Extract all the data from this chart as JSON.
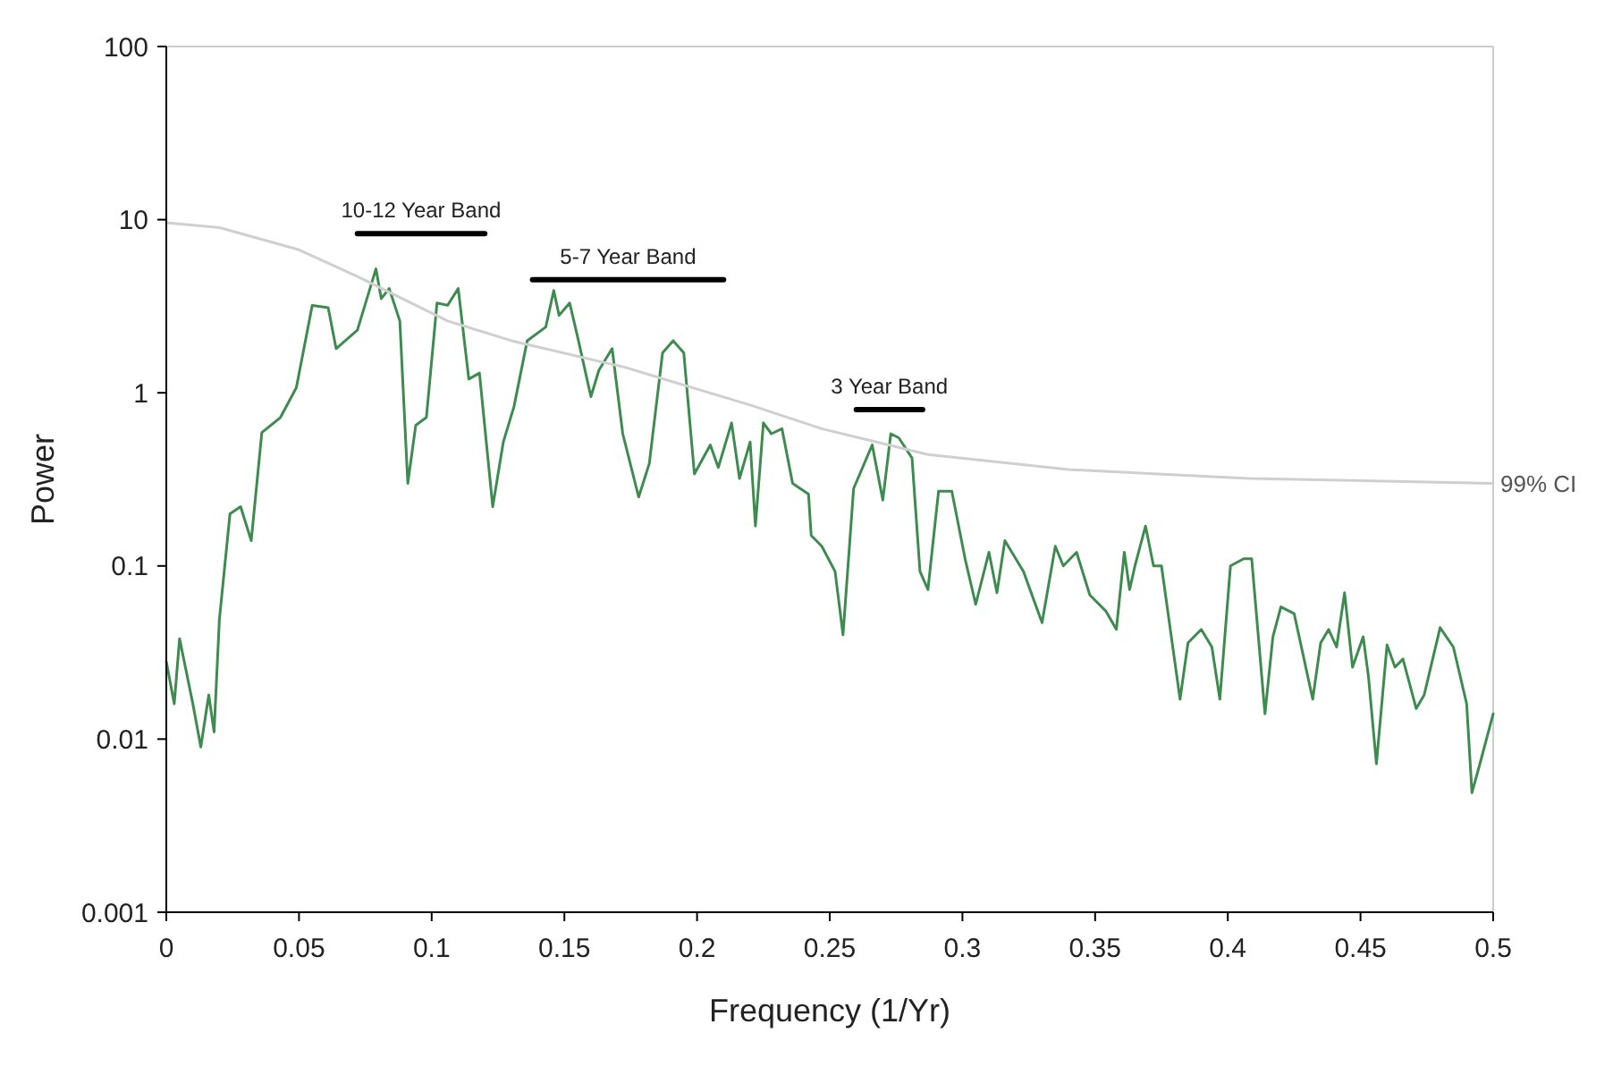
{
  "chart_data": {
    "type": "line",
    "xlabel": "Frequency (1/Yr)",
    "ylabel": "Power",
    "log": "y",
    "grid": false,
    "legend": false,
    "marker": "none",
    "line_style": "solid",
    "xlim": [
      0,
      0.5
    ],
    "ylim": [
      0.001,
      100
    ],
    "xticks": [
      0,
      0.05,
      0.1,
      0.15,
      0.2,
      0.25,
      0.3,
      0.35,
      0.4,
      0.45,
      0.5
    ],
    "yticks": [
      0.001,
      0.01,
      0.1,
      1,
      10,
      100
    ],
    "series": [
      {
        "color": "#3e8b50",
        "x": [
          0,
          0.003,
          0.005,
          0.01,
          0.013,
          0.016,
          0.018,
          0.02,
          0.024,
          0.028,
          0.032,
          0.036,
          0.043,
          0.049,
          0.055,
          0.061,
          0.064,
          0.072,
          0.079,
          0.081,
          0.084,
          0.088,
          0.091,
          0.094,
          0.098,
          0.102,
          0.106,
          0.11,
          0.114,
          0.118,
          0.123,
          0.127,
          0.131,
          0.136,
          0.143,
          0.146,
          0.148,
          0.152,
          0.155,
          0.16,
          0.163,
          0.168,
          0.172,
          0.178,
          0.182,
          0.187,
          0.191,
          0.195,
          0.199,
          0.205,
          0.208,
          0.213,
          0.216,
          0.22,
          0.222,
          0.225,
          0.228,
          0.232,
          0.236,
          0.242,
          0.243,
          0.247,
          0.252,
          0.255,
          0.259,
          0.266,
          0.27,
          0.273,
          0.276,
          0.281,
          0.284,
          0.287,
          0.291,
          0.296,
          0.301,
          0.305,
          0.31,
          0.313,
          0.316,
          0.323,
          0.33,
          0.335,
          0.338,
          0.343,
          0.348,
          0.354,
          0.358,
          0.361,
          0.363,
          0.365,
          0.369,
          0.372,
          0.375,
          0.382,
          0.385,
          0.39,
          0.394,
          0.397,
          0.401,
          0.406,
          0.409,
          0.414,
          0.417,
          0.42,
          0.425,
          0.432,
          0.435,
          0.438,
          0.441,
          0.444,
          0.447,
          0.451,
          0.453,
          0.456,
          0.46,
          0.463,
          0.466,
          0.471,
          0.474,
          0.48,
          0.485,
          0.49,
          0.492,
          0.495,
          0.5
        ],
        "values": [
          0.028,
          0.016,
          0.038,
          0.016,
          0.009,
          0.018,
          0.011,
          0.049,
          0.2,
          0.22,
          0.14,
          0.59,
          0.72,
          1.07,
          3.2,
          3.1,
          1.8,
          2.3,
          5.2,
          3.5,
          4,
          2.6,
          0.3,
          0.65,
          0.72,
          3.3,
          3.2,
          4,
          1.2,
          1.3,
          0.22,
          0.52,
          0.83,
          2,
          2.4,
          3.9,
          2.8,
          3.3,
          2.1,
          0.95,
          1.35,
          1.8,
          0.58,
          0.25,
          0.39,
          1.7,
          2,
          1.7,
          0.34,
          0.5,
          0.37,
          0.67,
          0.32,
          0.52,
          0.17,
          0.67,
          0.58,
          0.62,
          0.3,
          0.26,
          0.15,
          0.13,
          0.093,
          0.04,
          0.28,
          0.5,
          0.24,
          0.58,
          0.55,
          0.42,
          0.093,
          0.073,
          0.27,
          0.27,
          0.11,
          0.06,
          0.12,
          0.07,
          0.14,
          0.093,
          0.047,
          0.13,
          0.1,
          0.12,
          0.068,
          0.055,
          0.043,
          0.12,
          0.073,
          0.1,
          0.17,
          0.1,
          0.1,
          0.017,
          0.036,
          0.043,
          0.034,
          0.017,
          0.1,
          0.11,
          0.11,
          0.014,
          0.039,
          0.058,
          0.053,
          0.017,
          0.036,
          0.043,
          0.034,
          0.07,
          0.026,
          0.039,
          0.023,
          0.0072,
          0.035,
          0.026,
          0.029,
          0.015,
          0.018,
          0.044,
          0.034,
          0.016,
          0.0049,
          0.0072,
          0.014
        ]
      },
      {
        "name": "99% CI",
        "color": "#cfcfcf",
        "x": [
          0,
          0.02,
          0.05,
          0.072,
          0.106,
          0.13,
          0.173,
          0.22,
          0.247,
          0.287,
          0.34,
          0.408,
          0.5
        ],
        "values": [
          9.6,
          9,
          6.7,
          4.7,
          2.6,
          2,
          1.4,
          0.85,
          0.62,
          0.44,
          0.36,
          0.32,
          0.3
        ]
      },
      {
        "name": "10-12 Year Band",
        "color": "#000000",
        "x": [
          0.072,
          0.12
        ],
        "values": [
          8.3,
          8.3
        ]
      },
      {
        "name": "5-7 Year Band",
        "color": "#000000",
        "x": [
          0.138,
          0.21
        ],
        "values": [
          4.5,
          4.5
        ]
      },
      {
        "name": "3 Year Band",
        "color": "#000000",
        "x": [
          0.26,
          0.285
        ],
        "values": [
          0.8,
          0.8
        ]
      }
    ]
  }
}
